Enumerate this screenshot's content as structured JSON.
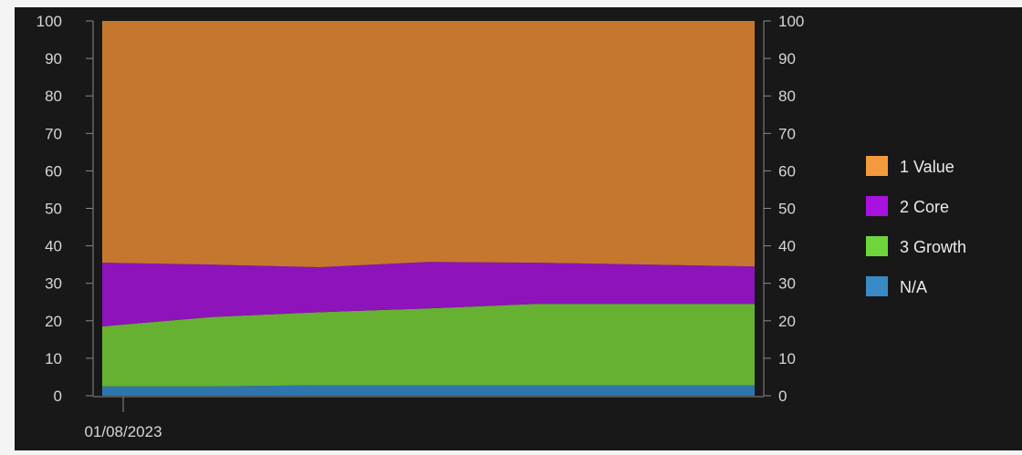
{
  "chart_data": {
    "type": "area",
    "stacked": true,
    "x": [
      "01/08/2023",
      "",
      "",
      "",
      "",
      "",
      ""
    ],
    "x_tick_labels": [
      "01/08/2023"
    ],
    "ylim": [
      0,
      100
    ],
    "y_ticks": [
      0,
      10,
      20,
      30,
      40,
      50,
      60,
      70,
      80,
      90,
      100
    ],
    "y_axis_right": true,
    "grid": false,
    "legend_position": "right",
    "series": [
      {
        "name": "N/A",
        "color": "#2e75ad",
        "values": [
          2.5,
          2.5,
          2.8,
          2.8,
          2.8,
          2.8,
          2.8
        ]
      },
      {
        "name": "3 Growth",
        "color": "#66b032",
        "values": [
          16,
          18.5,
          19.5,
          20.5,
          21.7,
          21.7,
          21.7
        ]
      },
      {
        "name": "2 Core",
        "color": "#8e13bb",
        "values": [
          17,
          14,
          12,
          12.4,
          11,
          10.5,
          10
        ]
      },
      {
        "name": "1 Value",
        "color": "#c6772e",
        "values": [
          64.5,
          65,
          65.7,
          64.3,
          64.5,
          65,
          65.5
        ]
      }
    ],
    "legend_swatch_colors": {
      "1 Value": "#f29a3c",
      "2 Core": "#a812e0",
      "3 Growth": "#6ed63d",
      "N/A": "#3a8ac8"
    }
  }
}
